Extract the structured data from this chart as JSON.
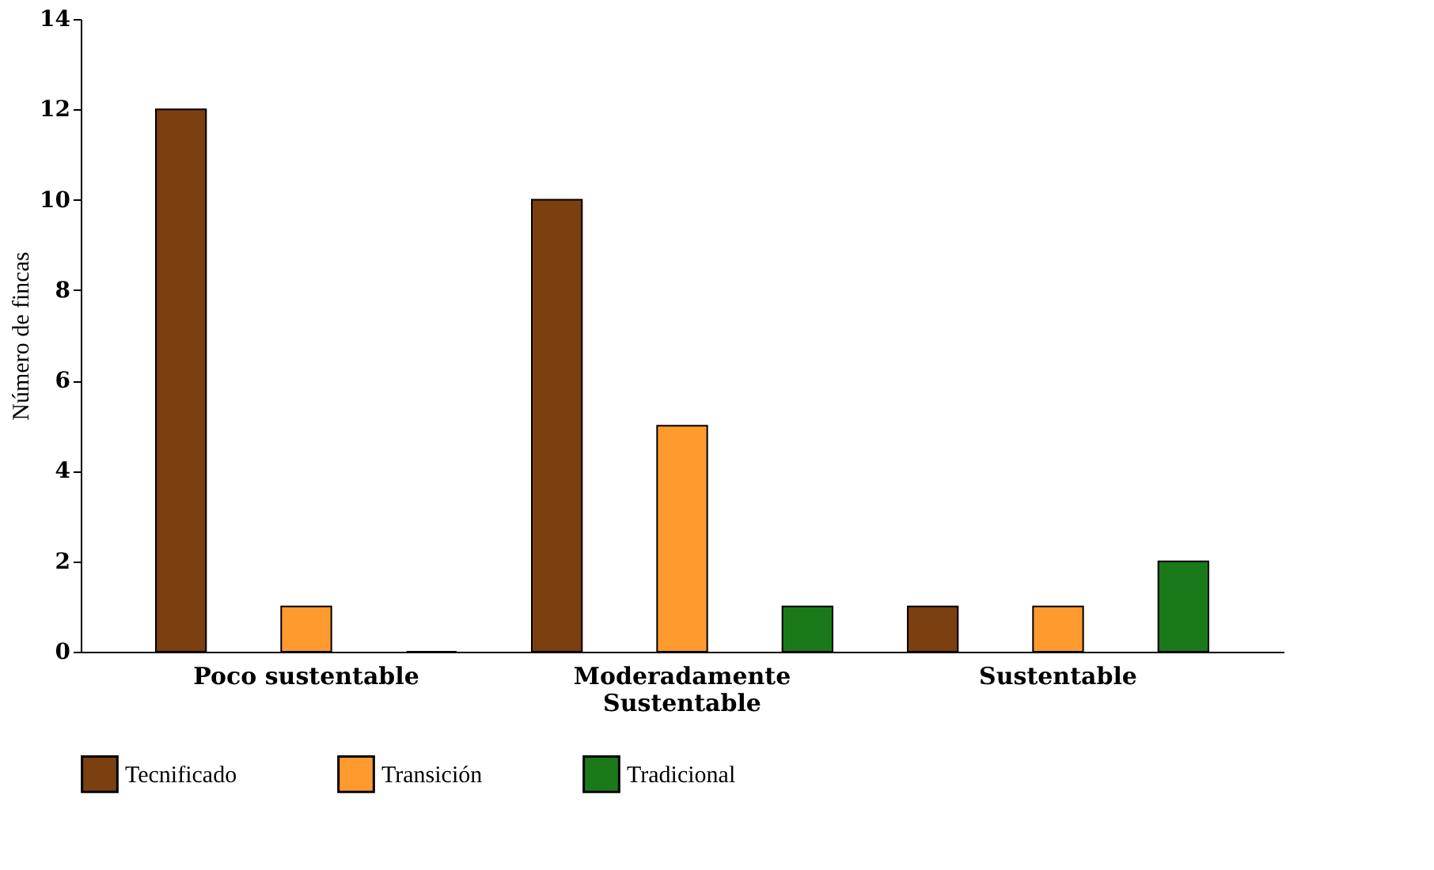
{
  "chart_data": {
    "type": "bar",
    "ylabel": "Número de fincas",
    "categories": [
      "Poco sustentable",
      "Moderadamente Sustentable",
      "Sustentable"
    ],
    "series": [
      {
        "name": "Tecnificado",
        "color": "#7b3f10",
        "values": [
          12,
          10,
          1
        ]
      },
      {
        "name": "Transición",
        "color": "#ff9a2e",
        "values": [
          1,
          5,
          1
        ]
      },
      {
        "name": "Tradicional",
        "color": "#1a7a1a",
        "values": [
          0,
          1,
          2
        ]
      }
    ],
    "ylim": [
      0,
      14
    ],
    "yticks": [
      0,
      2,
      4,
      6,
      8,
      10,
      12,
      14
    ],
    "grid": false,
    "legend": "bottom"
  }
}
